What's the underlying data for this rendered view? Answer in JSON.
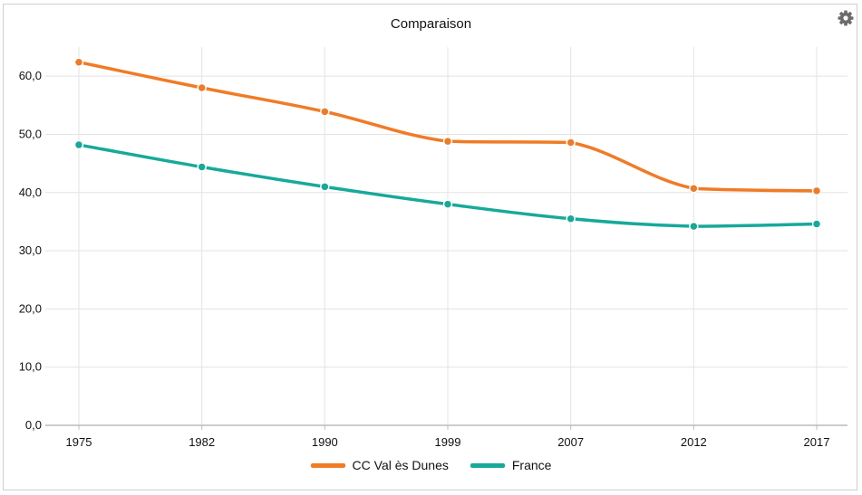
{
  "colors": {
    "series1": "#F07B26",
    "series2": "#17A99A",
    "grid": "#e3e3e3",
    "axis": "#bcbcbc",
    "gear": "#6b6b6b"
  },
  "icons": {
    "settings": "gear-icon"
  },
  "chart_data": {
    "type": "line",
    "title": "Comparaison",
    "xlabel": "",
    "ylabel": "",
    "categories": [
      "1975",
      "1982",
      "1990",
      "1999",
      "2007",
      "2012",
      "2017"
    ],
    "ylim": [
      0,
      65
    ],
    "yticks": [
      0,
      10,
      20,
      30,
      40,
      50,
      60
    ],
    "ytick_labels": [
      "0,0",
      "10,0",
      "20,0",
      "30,0",
      "40,0",
      "50,0",
      "60,0"
    ],
    "grid": true,
    "legend_position": "bottom-center",
    "series": [
      {
        "name": "CC Val ès Dunes",
        "values": [
          62.4,
          58.0,
          53.9,
          48.8,
          48.6,
          40.7,
          40.3
        ]
      },
      {
        "name": "France",
        "values": [
          48.2,
          44.4,
          41.0,
          38.0,
          35.5,
          34.2,
          34.6
        ]
      }
    ]
  }
}
